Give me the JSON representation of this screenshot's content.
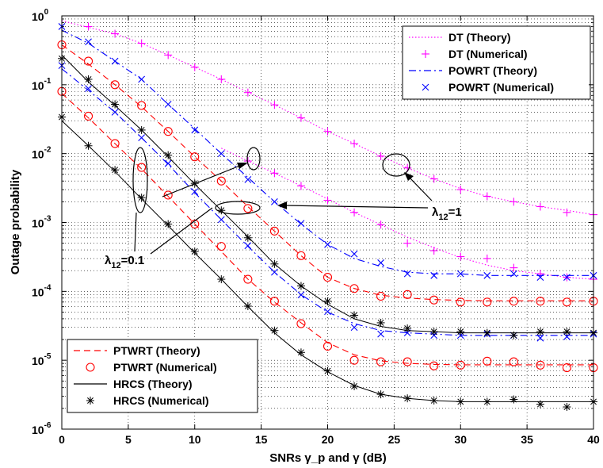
{
  "chart_data": {
    "type": "line",
    "xlabel": "SNRs γ_p and γ (dB)",
    "ylabel": "Outage probability",
    "xlim": [
      0,
      40
    ],
    "ylim": [
      1e-06,
      1
    ],
    "yscale": "log",
    "grid": true,
    "x_ticks": [
      "0",
      "5",
      "10",
      "15",
      "20",
      "25",
      "30",
      "35",
      "40"
    ],
    "y_ticks": [
      {
        "base": "10",
        "exp": "0"
      },
      {
        "base": "10",
        "exp": "-1"
      },
      {
        "base": "10",
        "exp": "-2"
      },
      {
        "base": "10",
        "exp": "-3"
      },
      {
        "base": "10",
        "exp": "-4"
      },
      {
        "base": "10",
        "exp": "-5"
      },
      {
        "base": "10",
        "exp": "-6"
      }
    ],
    "legend_top": {
      "placement": "top-right",
      "entries": [
        "DT (Theory)",
        "DT (Numerical)",
        "POWRT (Theory)",
        "POWRT (Numerical)"
      ]
    },
    "legend_bottom": {
      "placement": "bottom-left",
      "entries": [
        "PTWRT (Theory)",
        "PTWRT (Numerical)",
        "HRCS (Theory)",
        "HRCS (Numerical)"
      ]
    },
    "annotations": {
      "lambda_01": {
        "base": "λ",
        "sub": "12",
        "rest": "=0.1"
      },
      "lambda_1": {
        "base": "λ",
        "sub": "12",
        "rest": "=1"
      }
    },
    "colors": {
      "DT": "#ff00ff",
      "POWRT": "#0000ff",
      "PTWRT": "#ff0000",
      "HRCS": "#000000"
    },
    "series": [
      {
        "name": "DT (Theory)",
        "style": "dotted",
        "color": "#ff00ff",
        "x": [
          0,
          2,
          4,
          6,
          8,
          10,
          12,
          14,
          16,
          18,
          20,
          22,
          24,
          26,
          28,
          30,
          32,
          34,
          36,
          38,
          40
        ],
        "y": [
          0.85,
          0.68,
          0.55,
          0.4,
          0.27,
          0.18,
          0.12,
          0.078,
          0.051,
          0.033,
          0.021,
          0.014,
          0.0092,
          0.0062,
          0.0043,
          0.0031,
          0.0024,
          0.002,
          0.0017,
          0.0015,
          0.0013
        ]
      },
      {
        "name": "DT (Numerical)",
        "marker": "plus",
        "color": "#ff00ff",
        "x": [
          2,
          4,
          6,
          8,
          10,
          12,
          14,
          16,
          18,
          20,
          22,
          24,
          26,
          28,
          30,
          32,
          34,
          36,
          38,
          40
        ],
        "y": [
          0.7,
          0.55,
          0.4,
          0.27,
          0.18,
          0.12,
          0.077,
          0.051,
          0.033,
          0.021,
          0.014,
          0.0092,
          0.0062,
          0.0043,
          0.003,
          0.0024,
          0.002,
          0.0017,
          0.0014,
          0.0013
        ]
      },
      {
        "name": "DT low (Theory)",
        "style": "dotted",
        "color": "#ff00ff",
        "x": [
          12,
          14,
          16,
          18,
          20,
          22,
          24,
          26,
          28,
          30,
          32,
          34,
          36,
          38,
          40
        ],
        "y": [
          0.012,
          0.0078,
          0.0052,
          0.0034,
          0.0022,
          0.0014,
          0.00093,
          0.00061,
          0.00043,
          0.00031,
          0.00024,
          0.0002,
          0.00018,
          0.00016,
          0.00015
        ]
      },
      {
        "name": "DT low (Numerical)",
        "marker": "plus",
        "color": "#ff00ff",
        "x": [
          14,
          16,
          18,
          20,
          22,
          24,
          26,
          28,
          30,
          32,
          34,
          36,
          38,
          40
        ],
        "y": [
          0.0078,
          0.0052,
          0.0034,
          0.0021,
          0.0014,
          0.00093,
          0.0005,
          0.00039,
          0.00032,
          0.0003,
          0.00022,
          0.00018,
          0.00016,
          0.00015
        ]
      },
      {
        "name": "POWRT (Theory)",
        "style": "dashdot",
        "color": "#0000ff",
        "x": [
          0,
          2,
          4,
          6,
          8,
          10,
          12,
          14,
          16,
          18,
          20,
          22,
          24,
          26,
          28,
          30,
          32,
          34,
          36,
          38,
          40
        ],
        "y": [
          0.62,
          0.4,
          0.22,
          0.12,
          0.052,
          0.023,
          0.01,
          0.0045,
          0.002,
          0.00095,
          0.00048,
          0.0003,
          0.00023,
          0.00019,
          0.00018,
          0.00018,
          0.00017,
          0.00017,
          0.00017,
          0.00017,
          0.00017
        ]
      },
      {
        "name": "POWRT (Numerical)",
        "marker": "x",
        "color": "#0000ff",
        "x": [
          0,
          2,
          4,
          6,
          8,
          10,
          12,
          14,
          16,
          18,
          20,
          22,
          24,
          26,
          28,
          30,
          32,
          34,
          36,
          38,
          40
        ],
        "y": [
          0.7,
          0.42,
          0.22,
          0.12,
          0.052,
          0.022,
          0.01,
          0.0042,
          0.002,
          0.00097,
          0.00048,
          0.00035,
          0.00026,
          0.00018,
          0.00017,
          0.00018,
          0.00017,
          0.00018,
          0.00016,
          0.00016,
          0.00017
        ]
      },
      {
        "name": "POWRT low (Theory)",
        "style": "dashdot",
        "color": "#0000ff",
        "x": [
          0,
          2,
          4,
          6,
          8,
          10,
          12,
          14,
          16,
          18,
          20,
          22,
          24,
          26,
          28,
          30,
          32,
          34,
          36,
          38,
          40
        ],
        "y": [
          0.17,
          0.083,
          0.04,
          0.017,
          0.007,
          0.0027,
          0.0011,
          0.00045,
          0.00019,
          9e-05,
          5e-05,
          3.4e-05,
          2.7e-05,
          2.5e-05,
          2.4e-05,
          2.3e-05,
          2.3e-05,
          2.3e-05,
          2.3e-05,
          2.3e-05,
          2.3e-05
        ]
      },
      {
        "name": "POWRT low (Numerical)",
        "marker": "x",
        "color": "#0000ff",
        "x": [
          0,
          2,
          4,
          6,
          8,
          10,
          12,
          14,
          16,
          18,
          20,
          22,
          24,
          26,
          28,
          30,
          32,
          34,
          36,
          38,
          40
        ],
        "y": [
          0.19,
          0.088,
          0.04,
          0.017,
          0.0072,
          0.0028,
          0.0011,
          0.00046,
          0.00019,
          8.9e-05,
          5.1e-05,
          3e-05,
          2.4e-05,
          2.5e-05,
          2.3e-05,
          2.3e-05,
          2.4e-05,
          2.3e-05,
          2.1e-05,
          2.2e-05,
          2.4e-05
        ]
      },
      {
        "name": "PTWRT (Theory)",
        "style": "dashed",
        "color": "#ff0000",
        "x": [
          0,
          2,
          4,
          6,
          8,
          10,
          12,
          14,
          16,
          18,
          20,
          22,
          24,
          26,
          28,
          30,
          32,
          34,
          36,
          38,
          40
        ],
        "y": [
          0.38,
          0.2,
          0.1,
          0.048,
          0.021,
          0.009,
          0.004,
          0.0017,
          0.00075,
          0.00033,
          0.00016,
          0.00011,
          8.8e-05,
          8e-05,
          7.6e-05,
          7.4e-05,
          7.3e-05,
          7.3e-05,
          7.3e-05,
          7.3e-05,
          7.3e-05
        ]
      },
      {
        "name": "PTWRT (Numerical)",
        "marker": "circle",
        "color": "#ff0000",
        "x": [
          0,
          2,
          4,
          6,
          8,
          10,
          12,
          14,
          16,
          18,
          20,
          22,
          24,
          26,
          28,
          30,
          32,
          34,
          36,
          38,
          40
        ],
        "y": [
          0.38,
          0.22,
          0.1,
          0.05,
          0.021,
          0.009,
          0.004,
          0.0016,
          0.00075,
          0.00033,
          0.00016,
          0.00011,
          8.5e-05,
          9e-05,
          7.5e-05,
          7e-05,
          7e-05,
          7.2e-05,
          7.2e-05,
          7e-05,
          7.2e-05
        ]
      },
      {
        "name": "PTWRT low (Theory)",
        "style": "dashed",
        "color": "#ff0000",
        "x": [
          0,
          2,
          4,
          6,
          8,
          10,
          12,
          14,
          16,
          18,
          20,
          22,
          24,
          26,
          28,
          30,
          32,
          34,
          36,
          38,
          40
        ],
        "y": [
          0.075,
          0.033,
          0.014,
          0.006,
          0.0024,
          0.00095,
          0.00038,
          0.00015,
          7e-05,
          3.5e-05,
          1.8e-05,
          1.2e-05,
          9.8e-06,
          9e-06,
          8.7e-06,
          8.6e-06,
          8.6e-06,
          8.6e-06,
          8.6e-06,
          8.6e-06,
          8.6e-06
        ]
      },
      {
        "name": "PTWRT low (Numerical)",
        "marker": "circle",
        "color": "#ff0000",
        "x": [
          0,
          2,
          4,
          6,
          8,
          10,
          12,
          14,
          16,
          18,
          20,
          22,
          24,
          26,
          28,
          30,
          32,
          34,
          36,
          38,
          40
        ],
        "y": [
          0.08,
          0.035,
          0.014,
          0.0063,
          0.0025,
          0.00095,
          0.00045,
          0.00015,
          7.2e-05,
          3.4e-05,
          1.6e-05,
          1e-05,
          9.5e-06,
          9.5e-06,
          8.3e-06,
          8.5e-06,
          9.7e-06,
          9.5e-06,
          8.5e-06,
          7.8e-06,
          7.8e-06
        ]
      },
      {
        "name": "HRCS (Theory)",
        "style": "solid",
        "color": "#000000",
        "x": [
          0,
          2,
          4,
          6,
          8,
          10,
          12,
          14,
          16,
          18,
          20,
          22,
          24,
          26,
          28,
          30,
          32,
          34,
          36,
          38,
          40
        ],
        "y": [
          0.27,
          0.11,
          0.05,
          0.022,
          0.009,
          0.0036,
          0.0015,
          0.00062,
          0.00025,
          0.00012,
          6.5e-05,
          4e-05,
          3.1e-05,
          2.7e-05,
          2.6e-05,
          2.5e-05,
          2.5e-05,
          2.5e-05,
          2.5e-05,
          2.5e-05,
          2.5e-05
        ]
      },
      {
        "name": "HRCS (Numerical)",
        "marker": "star",
        "color": "#000000",
        "x": [
          0,
          2,
          4,
          6,
          8,
          10,
          12,
          14,
          16,
          18,
          20,
          22,
          24,
          26,
          28,
          30,
          32,
          34,
          36,
          38,
          40
        ],
        "y": [
          0.24,
          0.12,
          0.052,
          0.022,
          0.0095,
          0.0037,
          0.0015,
          0.0006,
          0.00025,
          0.00012,
          7.2e-05,
          4.5e-05,
          3.5e-05,
          2.9e-05,
          2.6e-05,
          2.6e-05,
          2.5e-05,
          2.3e-05,
          2.6e-05,
          2.6e-05,
          2.5e-05
        ]
      },
      {
        "name": "HRCS low (Theory)",
        "style": "solid",
        "color": "#000000",
        "x": [
          0,
          2,
          4,
          6,
          8,
          10,
          12,
          14,
          16,
          18,
          20,
          22,
          24,
          26,
          28,
          30,
          32,
          34,
          36,
          38,
          40
        ],
        "y": [
          0.03,
          0.013,
          0.0055,
          0.0022,
          0.0009,
          0.00036,
          0.00015,
          6e-05,
          2.5e-05,
          1.2e-05,
          6.8e-06,
          4.3e-06,
          3.2e-06,
          2.8e-06,
          2.6e-06,
          2.5e-06,
          2.5e-06,
          2.5e-06,
          2.5e-06,
          2.5e-06,
          2.5e-06
        ]
      },
      {
        "name": "HRCS low (Numerical)",
        "marker": "star",
        "color": "#000000",
        "x": [
          0,
          2,
          4,
          6,
          8,
          10,
          12,
          14,
          16,
          18,
          20,
          22,
          24,
          26,
          28,
          30,
          32,
          34,
          36,
          38,
          40
        ],
        "y": [
          0.034,
          0.013,
          0.0058,
          0.0023,
          0.00095,
          0.00038,
          0.00015,
          6.1e-05,
          2.7e-05,
          1.3e-05,
          7e-06,
          4.2e-06,
          3.2e-06,
          2.8e-06,
          2.6e-06,
          2.5e-06,
          2.5e-06,
          2.7e-06,
          2.3e-06,
          2.1e-06,
          2.5e-06
        ]
      }
    ]
  }
}
